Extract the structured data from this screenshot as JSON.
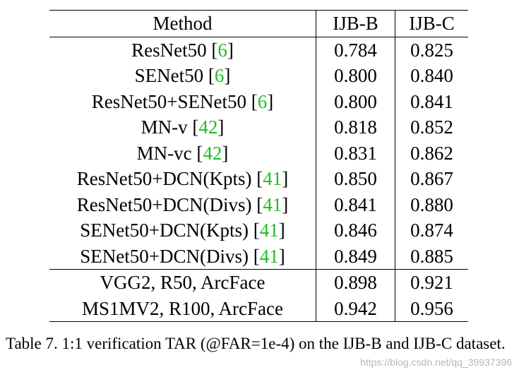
{
  "table": {
    "headers": [
      "Method",
      "IJB-B",
      "IJB-C"
    ],
    "rows": [
      {
        "method": "ResNet50",
        "ref": "6",
        "ijbb": "0.784",
        "ijbc": "0.825"
      },
      {
        "method": "SENet50",
        "ref": "6",
        "ijbb": "0.800",
        "ijbc": "0.840"
      },
      {
        "method": "ResNet50+SENet50",
        "ref": "6",
        "ijbb": "0.800",
        "ijbc": "0.841"
      },
      {
        "method": "MN-v",
        "ref": "42",
        "ijbb": "0.818",
        "ijbc": "0.852"
      },
      {
        "method": "MN-vc",
        "ref": "42",
        "ijbb": "0.831",
        "ijbc": "0.862"
      },
      {
        "method": "ResNet50+DCN(Kpts)",
        "ref": "41",
        "ijbb": "0.850",
        "ijbc": "0.867"
      },
      {
        "method": "ResNet50+DCN(Divs)",
        "ref": "41",
        "ijbb": "0.841",
        "ijbc": "0.880"
      },
      {
        "method": "SENet50+DCN(Kpts)",
        "ref": "41",
        "ijbb": "0.846",
        "ijbc": "0.874"
      },
      {
        "method": "SENet50+DCN(Divs)",
        "ref": "41",
        "ijbb": "0.849",
        "ijbc": "0.885"
      },
      {
        "method": "VGG2, R50, ArcFace",
        "ref": "",
        "ijbb": "0.898",
        "ijbc": "0.921"
      },
      {
        "method": "MS1MV2, R100, ArcFace",
        "ref": "",
        "ijbb": "0.942",
        "ijbc": "0.956",
        "bold": true
      }
    ]
  },
  "caption": "Table 7. 1:1 verification TAR (@FAR=1e-4) on the IJB-B and IJB-C dataset.",
  "watermark": "https://blog.csdn.net/qq_39937396",
  "colors": {
    "citation": "#1fbe1f",
    "text": "#000000"
  }
}
